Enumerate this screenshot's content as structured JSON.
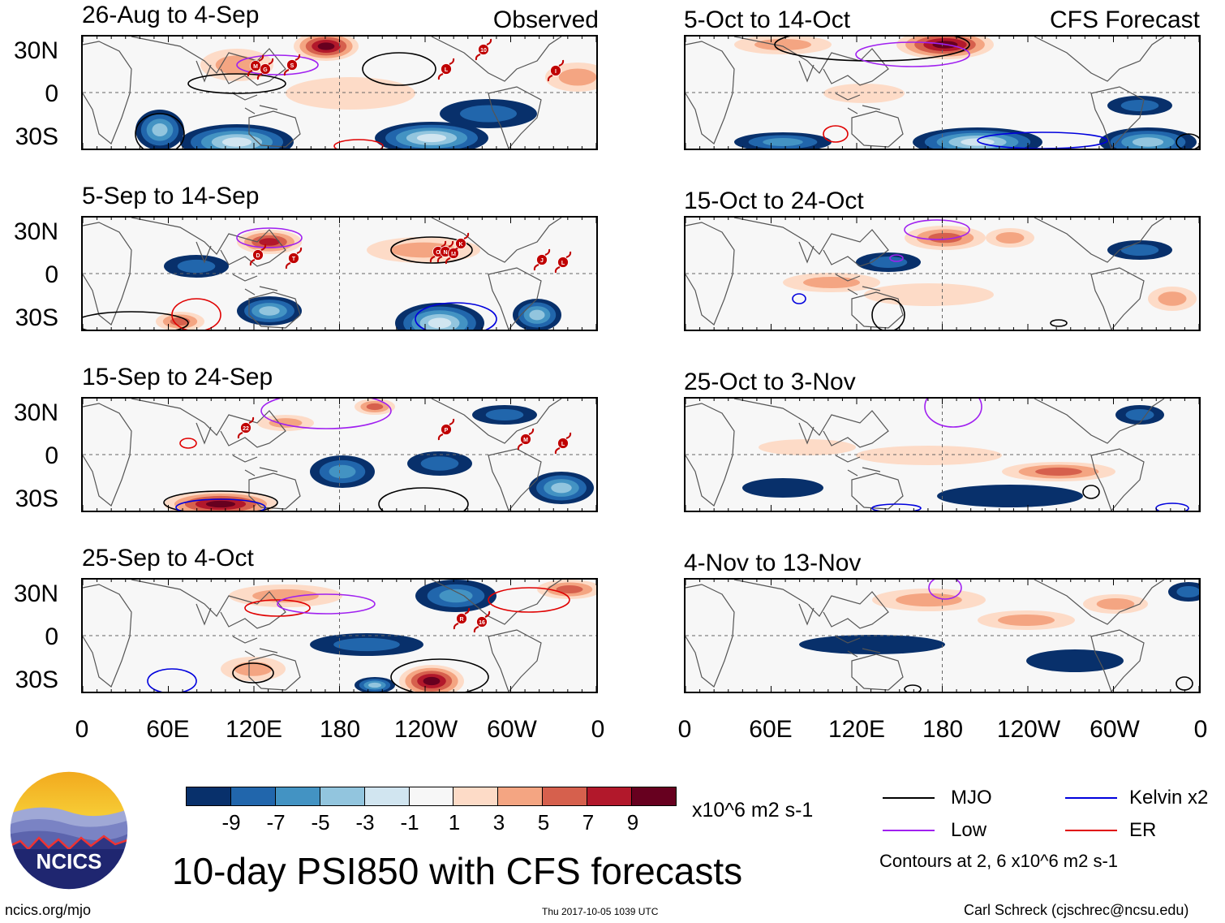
{
  "chart_data": {
    "type": "heatmap",
    "title": "10-day PSI850 with CFS forecasts",
    "variable": "PSI850 anomaly",
    "units": "x10^6 m2 s-1",
    "column_titles": [
      "Observed",
      "CFS Forecast"
    ],
    "x_ticks": [
      "0",
      "60E",
      "120E",
      "180",
      "120W",
      "60W",
      "0"
    ],
    "y_ticks": [
      "30N",
      "0",
      "30S"
    ],
    "colorbar": {
      "ticks": [
        "-9",
        "-7",
        "-5",
        "-3",
        "-1",
        "1",
        "3",
        "5",
        "7",
        "9"
      ],
      "colors": [
        "#08306b",
        "#2166ac",
        "#4393c3",
        "#92c5de",
        "#d1e5f0",
        "#f7f7f7",
        "#fddbc7",
        "#f4a582",
        "#d6604d",
        "#b2182b",
        "#67001f"
      ]
    },
    "contour_legend": [
      {
        "name": "MJO",
        "color": "#000000"
      },
      {
        "name": "Kelvin x2",
        "color": "#0000dd"
      },
      {
        "name": "Low",
        "color": "#a020f0"
      },
      {
        "name": "ER",
        "color": "#e00000"
      }
    ],
    "contour_note": "Contours at 2, 6 x10^6 m2 s-1",
    "observed": [
      {
        "period": "26-Aug to 4-Sep",
        "storms": [
          "M",
          "G",
          "S",
          "L",
          "10",
          "I"
        ]
      },
      {
        "period": "5-Sep to 14-Sep",
        "storms": [
          "D",
          "T",
          "O",
          "N",
          "M",
          "K",
          "J",
          "L"
        ]
      },
      {
        "period": "15-Sep to 24-Sep",
        "storms": [
          "22",
          "P",
          "M",
          "L"
        ]
      },
      {
        "period": "25-Sep to 4-Oct",
        "storms": [
          "R",
          "16"
        ]
      }
    ],
    "forecast": [
      {
        "period": "5-Oct to 14-Oct"
      },
      {
        "period": "15-Oct to 24-Oct"
      },
      {
        "period": "25-Oct to 3-Nov"
      },
      {
        "period": "4-Nov to 13-Nov"
      }
    ]
  },
  "footer": {
    "logo_text": "NCICS",
    "url": "ncics.org/mjo",
    "timestamp": "Thu 2017-10-05 1039 UTC",
    "credit": "Carl Schreck (cjschrec@ncsu.edu)"
  }
}
